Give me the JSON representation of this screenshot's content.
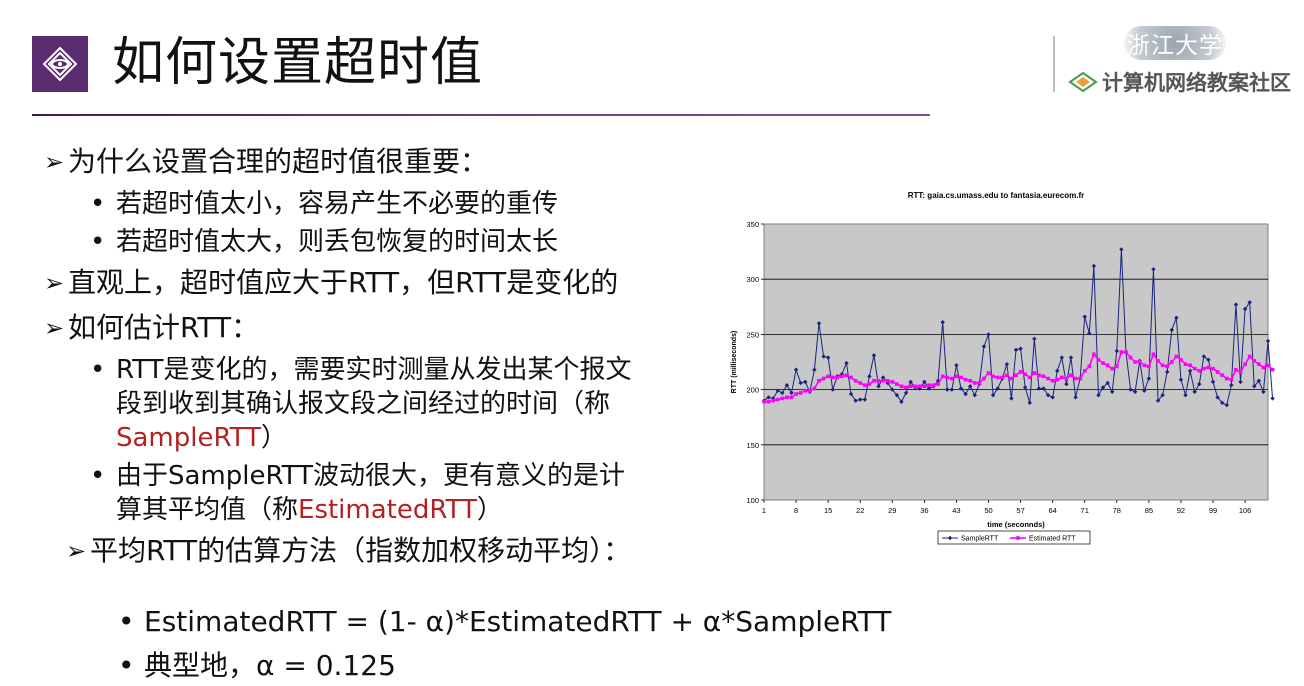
{
  "slide": {
    "title": "如何设置超时值",
    "logo_top": "浙江大学",
    "logo_bottom": "计算机网络教案社区"
  },
  "bullets": {
    "q1": "为什么设置合理的超时值很重要：",
    "q1_a": "若超时值太小，容易产生不必要的重传",
    "q1_b": "若超时值太大，则丢包恢复的时间太长",
    "q2": "直观上，超时值应大于RTT，但RTT是变化的",
    "q3": "如何估计RTT：",
    "q3_a_line1": "RTT是变化的，需要实时测量从发出某个报文",
    "q3_a_line2": "段到收到其确认报文段之间经过的时间（称",
    "q3_a_red": "SampleRTT",
    "q3_a_end": "）",
    "q3_b_line1": "由于SampleRTT波动很大，更有意义的是计",
    "q3_b_line2_pre": "算其平均值（称",
    "q3_b_red": "EstimatedRTT",
    "q3_b_end": "）",
    "q4": "平均RTT的估算方法（指数加权移动平均）：",
    "formula": "EstimatedRTT = (1- α)*EstimatedRTT + α*SampleRTT",
    "typical": "典型地，α = 0.125"
  },
  "icons": {
    "title": "diamond-eye-icon",
    "arrow": "arrow-bullet-icon",
    "dot": "dot-bullet-icon",
    "logo": "diamond-logo-icon"
  },
  "colors": {
    "accent": "#5b2c6f",
    "emphasis": "#b22222",
    "sample_series": "#1a237e",
    "estimated_series": "#ff00ff",
    "plot_background": "#c8c8c8"
  },
  "chart_data": {
    "type": "line",
    "title": "RTT: gaia.cs.umass.edu to fantasia.eurecom.fr",
    "xlabel": "time (seconnds)",
    "ylabel": "RTT (milliseconds)",
    "ylim": [
      100,
      350
    ],
    "yticks": [
      100,
      150,
      200,
      250,
      300,
      350
    ],
    "xticks": [
      1,
      8,
      15,
      22,
      29,
      36,
      43,
      50,
      57,
      64,
      71,
      78,
      85,
      92,
      99,
      106
    ],
    "xlim": [
      1,
      111
    ],
    "grid": true,
    "legend_position": "bottom",
    "series": [
      {
        "name": "SampleRTT",
        "values": [
          190,
          193,
          192,
          199,
          197,
          204,
          197,
          218,
          206,
          207,
          198,
          218,
          260,
          230,
          229,
          200,
          212,
          214,
          224,
          196,
          190,
          191,
          191,
          212,
          231,
          203,
          211,
          206,
          200,
          195,
          189,
          197,
          207,
          202,
          201,
          207,
          201,
          203,
          208,
          261,
          200,
          200,
          222,
          201,
          196,
          203,
          195,
          205,
          239,
          250,
          195,
          201,
          210,
          223,
          192,
          236,
          237,
          202,
          188,
          246,
          201,
          201,
          195,
          193,
          217,
          229,
          205,
          229,
          193,
          210,
          266,
          251,
          312,
          195,
          202,
          206,
          198,
          235,
          327,
          234,
          200,
          198,
          226,
          199,
          210,
          309,
          190,
          195,
          216,
          254,
          265,
          209,
          195,
          217,
          198,
          205,
          230,
          227,
          207,
          193,
          188,
          186,
          204,
          277,
          207,
          273,
          279,
          203,
          208,
          198,
          244,
          192
        ],
        "x_start": 1
      },
      {
        "name": "Estimated RTT",
        "values": [
          189,
          189,
          190,
          191,
          192,
          193,
          193,
          196,
          197,
          199,
          199,
          201,
          208,
          210,
          212,
          211,
          211,
          212,
          213,
          211,
          208,
          206,
          204,
          205,
          208,
          208,
          208,
          208,
          207,
          205,
          203,
          202,
          203,
          203,
          203,
          203,
          204,
          204,
          205,
          212,
          211,
          210,
          212,
          211,
          209,
          208,
          206,
          206,
          210,
          215,
          212,
          211,
          211,
          213,
          210,
          213,
          216,
          214,
          211,
          215,
          213,
          212,
          210,
          208,
          209,
          211,
          210,
          213,
          210,
          210,
          217,
          221,
          232,
          227,
          224,
          222,
          219,
          221,
          234,
          234,
          229,
          225,
          225,
          222,
          221,
          232,
          226,
          222,
          221,
          225,
          230,
          227,
          223,
          222,
          219,
          217,
          219,
          220,
          219,
          216,
          213,
          210,
          209,
          218,
          216,
          223,
          230,
          226,
          223,
          220,
          222,
          218
        ],
        "x_start": 1
      }
    ]
  }
}
